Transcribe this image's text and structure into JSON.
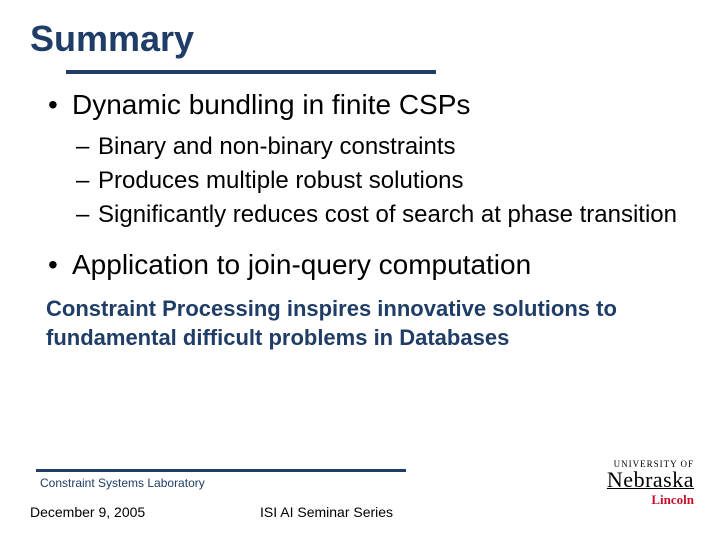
{
  "title": "Summary",
  "bullets": {
    "b1": "Dynamic bundling in finite CSPs",
    "s1": "Binary and non-binary constraints",
    "s2": "Produces multiple robust solutions",
    "s3": "Significantly reduces cost of search at phase transition",
    "b2": "Application to join-query computation"
  },
  "emphasis": "Constraint Processing inspires innovative solutions to fundamental difficult problems in Databases",
  "footer": {
    "lab": "Constraint Systems Laboratory",
    "date": "December 9, 2005",
    "series": "ISI AI Seminar Series"
  },
  "logo": {
    "top": "UNIVERSITY OF",
    "main": "Nebraska",
    "sub": "Lincoln"
  },
  "colors": {
    "heading": "#1f3d66",
    "accent_red": "#c8102e",
    "text": "#000000",
    "background": "#ffffff"
  }
}
